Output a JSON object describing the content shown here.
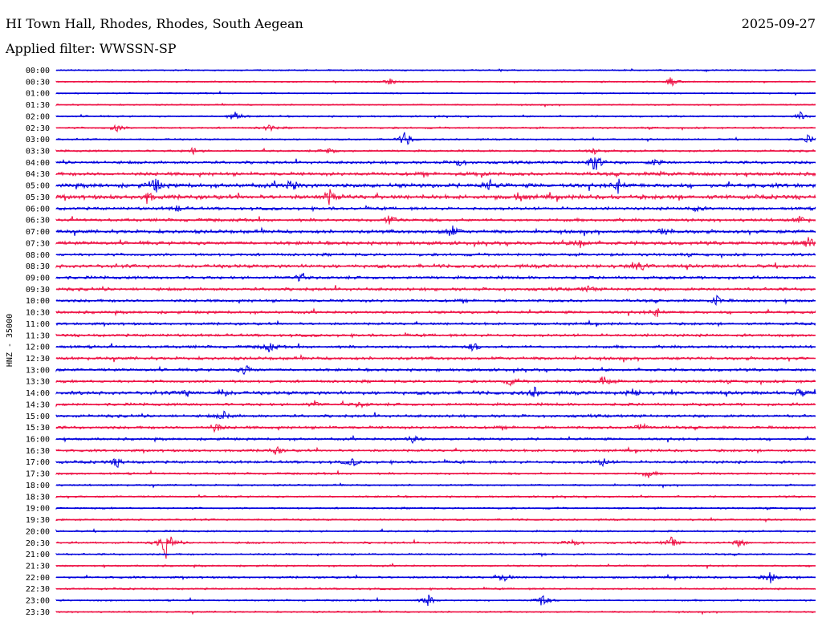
{
  "header": {
    "station": "HI Town Hall, Rhodes, Rhodes, South Aegean",
    "date": "2025-09-27",
    "filter": "Applied filter: WWSSN-SP"
  },
  "chart_data": {
    "type": "line",
    "ylabel": "HNZ - 35000",
    "row_labels": [
      "00:00",
      "00:30",
      "01:00",
      "01:30",
      "02:00",
      "02:30",
      "03:00",
      "03:30",
      "04:00",
      "04:30",
      "05:00",
      "05:30",
      "06:00",
      "06:30",
      "07:00",
      "07:30",
      "08:00",
      "08:30",
      "09:00",
      "09:30",
      "10:00",
      "10:30",
      "11:00",
      "11:30",
      "12:00",
      "12:30",
      "13:00",
      "13:30",
      "14:00",
      "14:30",
      "15:00",
      "15:30",
      "16:00",
      "16:30",
      "17:00",
      "17:30",
      "18:00",
      "18:30",
      "19:00",
      "19:30",
      "20:00",
      "20:30",
      "21:00",
      "21:30",
      "22:00",
      "22:30",
      "23:00",
      "23:30"
    ],
    "colors": [
      "#0000dd",
      "#ee1144"
    ],
    "noise_level": [
      1,
      1,
      1,
      1,
      1.2,
      1.3,
      1.2,
      1.5,
      2,
      2.5,
      3,
      3,
      2.2,
      2.2,
      2.5,
      2.5,
      2,
      2.5,
      2.2,
      2.2,
      2,
      2,
      1.8,
      2,
      2,
      2.2,
      2,
      2,
      2.5,
      2,
      2,
      2,
      1.8,
      1.8,
      2,
      1.5,
      1.3,
      1.3,
      1.3,
      1.3,
      1.3,
      1.5,
      1.3,
      1.3,
      1.5,
      1.3,
      1.3,
      1.2
    ],
    "events": [
      {
        "row": 1,
        "x": 0.81,
        "amp": 6
      },
      {
        "row": 1,
        "x": 0.44,
        "amp": 4
      },
      {
        "row": 4,
        "x": 0.235,
        "amp": 8
      },
      {
        "row": 4,
        "x": 0.98,
        "amp": 5
      },
      {
        "row": 5,
        "x": 0.08,
        "amp": 5
      },
      {
        "row": 5,
        "x": 0.28,
        "amp": 5
      },
      {
        "row": 6,
        "x": 0.46,
        "amp": 12
      },
      {
        "row": 6,
        "x": 0.99,
        "amp": 5
      },
      {
        "row": 7,
        "x": 0.18,
        "amp": 4
      },
      {
        "row": 7,
        "x": 0.36,
        "amp": 4
      },
      {
        "row": 7,
        "x": 0.71,
        "amp": 5
      },
      {
        "row": 8,
        "x": 0.71,
        "amp": 14
      },
      {
        "row": 8,
        "x": 0.53,
        "amp": 5
      },
      {
        "row": 8,
        "x": 0.79,
        "amp": 5
      },
      {
        "row": 9,
        "x": 0.56,
        "amp": 4
      },
      {
        "row": 9,
        "x": 0.8,
        "amp": 4
      },
      {
        "row": 10,
        "x": 0.13,
        "amp": 10
      },
      {
        "row": 10,
        "x": 0.31,
        "amp": 8
      },
      {
        "row": 10,
        "x": 0.74,
        "amp": 8
      },
      {
        "row": 10,
        "x": 0.57,
        "amp": 6
      },
      {
        "row": 11,
        "x": 0.36,
        "amp": 9
      },
      {
        "row": 11,
        "x": 0.12,
        "amp": 7
      },
      {
        "row": 11,
        "x": 0.61,
        "amp": 5
      },
      {
        "row": 12,
        "x": 0.16,
        "amp": 4
      },
      {
        "row": 12,
        "x": 0.84,
        "amp": 4
      },
      {
        "row": 13,
        "x": 0.44,
        "amp": 7
      },
      {
        "row": 13,
        "x": 0.98,
        "amp": 5
      },
      {
        "row": 14,
        "x": 0.52,
        "amp": 9
      },
      {
        "row": 14,
        "x": 0.8,
        "amp": 5
      },
      {
        "row": 15,
        "x": 0.69,
        "amp": 6
      },
      {
        "row": 15,
        "x": 0.99,
        "amp": 9
      },
      {
        "row": 17,
        "x": 0.77,
        "amp": 7
      },
      {
        "row": 18,
        "x": 0.32,
        "amp": 5
      },
      {
        "row": 19,
        "x": 0.7,
        "amp": 4
      },
      {
        "row": 20,
        "x": 0.87,
        "amp": 6
      },
      {
        "row": 21,
        "x": 0.79,
        "amp": 6
      },
      {
        "row": 24,
        "x": 0.28,
        "amp": 6
      },
      {
        "row": 24,
        "x": 0.55,
        "amp": 5
      },
      {
        "row": 26,
        "x": 0.25,
        "amp": 7
      },
      {
        "row": 27,
        "x": 0.72,
        "amp": 7
      },
      {
        "row": 27,
        "x": 0.6,
        "amp": 5
      },
      {
        "row": 28,
        "x": 0.17,
        "amp": 5
      },
      {
        "row": 28,
        "x": 0.22,
        "amp": 5
      },
      {
        "row": 28,
        "x": 0.63,
        "amp": 6
      },
      {
        "row": 28,
        "x": 0.76,
        "amp": 5
      },
      {
        "row": 28,
        "x": 0.98,
        "amp": 5
      },
      {
        "row": 29,
        "x": 0.34,
        "amp": 4
      },
      {
        "row": 29,
        "x": 0.4,
        "amp": 4
      },
      {
        "row": 30,
        "x": 0.22,
        "amp": 6
      },
      {
        "row": 31,
        "x": 0.21,
        "amp": 6
      },
      {
        "row": 31,
        "x": 0.77,
        "amp": 6
      },
      {
        "row": 32,
        "x": 0.47,
        "amp": 5
      },
      {
        "row": 33,
        "x": 0.29,
        "amp": 5
      },
      {
        "row": 34,
        "x": 0.08,
        "amp": 6
      },
      {
        "row": 34,
        "x": 0.39,
        "amp": 5
      },
      {
        "row": 34,
        "x": 0.72,
        "amp": 5
      },
      {
        "row": 35,
        "x": 0.78,
        "amp": 5
      },
      {
        "row": 41,
        "x": 0.145,
        "amp": 20
      },
      {
        "row": 41,
        "x": 0.68,
        "amp": 5
      },
      {
        "row": 41,
        "x": 0.81,
        "amp": 7
      },
      {
        "row": 41,
        "x": 0.9,
        "amp": 5
      },
      {
        "row": 44,
        "x": 0.59,
        "amp": 6
      },
      {
        "row": 44,
        "x": 0.94,
        "amp": 8
      },
      {
        "row": 46,
        "x": 0.49,
        "amp": 7
      },
      {
        "row": 46,
        "x": 0.64,
        "amp": 9
      }
    ]
  }
}
